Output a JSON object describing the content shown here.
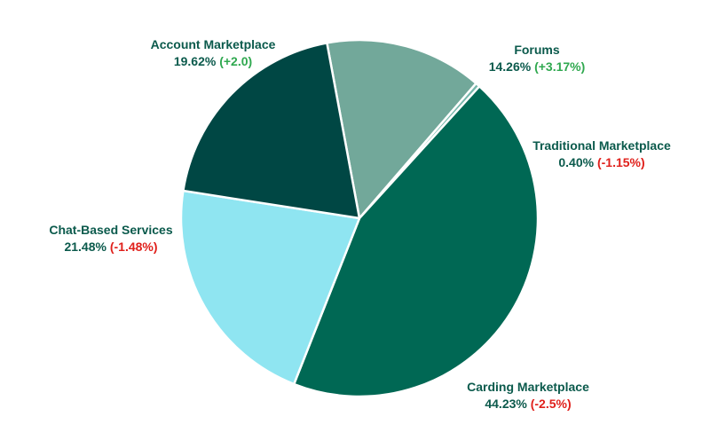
{
  "chart_data": {
    "type": "pie",
    "start_angle_deg": -10.5,
    "direction": "clockwise",
    "slices": [
      {
        "name": "Forums",
        "value": 14.26,
        "value_label": "14.26%",
        "change_label": "(+3.17%)",
        "change_sign": "pos",
        "color": "#72a89a"
      },
      {
        "name": "Traditional Marketplace",
        "value": 0.4,
        "value_label": "0.40%",
        "change_label": "(-1.15%)",
        "change_sign": "neg",
        "color": "#76b7ab"
      },
      {
        "name": "Carding Marketplace",
        "value": 44.23,
        "value_label": "44.23%",
        "change_label": "(-2.5%)",
        "change_sign": "neg",
        "color": "#006854"
      },
      {
        "name": "Chat-Based Services",
        "value": 21.48,
        "value_label": "21.48%",
        "change_label": "(-1.48%)",
        "change_sign": "neg",
        "color": "#8fe5f1"
      },
      {
        "name": "Account Marketplace",
        "value": 19.62,
        "value_label": "19.62%",
        "change_label": "(+2.0)",
        "change_sign": "pos",
        "color": "#004744"
      }
    ]
  }
}
